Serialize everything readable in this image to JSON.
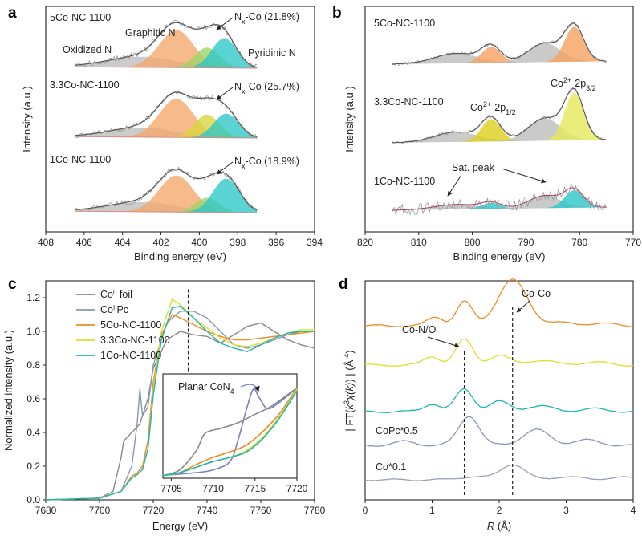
{
  "figure_colors": {
    "graphitic": "#f4a66a",
    "pyridinic": "#2cc6c6",
    "nxco": "#d8d63c",
    "nxco_light": "#9fd36a",
    "oxidized": "#bdbdbd",
    "co2p12": "#d9cf1a",
    "co2p32": "#f5a060",
    "envelope": "#555555",
    "raw": "#9a9a9a",
    "baseline": "#d98b80",
    "co_foil": "#888888",
    "copc": "#8a96b8",
    "s5": "#f08a24",
    "s33": "#dede30",
    "s1": "#1ab8b0",
    "inset_copc": "#7a80c0",
    "dash": "#222222"
  },
  "chart_data": [
    {
      "panel": "a",
      "type": "line",
      "title": "",
      "xlabel": "Binding energy (eV)",
      "ylabel": "Intensity (a.u.)",
      "xlim": [
        408,
        394
      ],
      "xticks": [
        408,
        406,
        404,
        402,
        400,
        398,
        396,
        394
      ],
      "component_legend": [
        "Graphitic N",
        "Oxidized N",
        "Pyridinic N"
      ],
      "series": [
        {
          "name": "5Co-NC-1100",
          "annotation": "Nx-Co (21.8%)",
          "components": [
            {
              "name": "Oxidized N",
              "center": 403.0,
              "height": 0.22,
              "width": 1.8
            },
            {
              "name": "Graphitic N",
              "center": 401.2,
              "height": 0.78,
              "width": 0.9
            },
            {
              "name": "Nx-Co",
              "center": 399.6,
              "height": 0.42,
              "width": 0.65
            },
            {
              "name": "Pyridinic N",
              "center": 398.7,
              "height": 0.62,
              "width": 0.65
            }
          ]
        },
        {
          "name": "3.3Co-NC-1100",
          "annotation": "Nx-Co (25.7%)",
          "components": [
            {
              "name": "Oxidized N",
              "center": 403.0,
              "height": 0.2,
              "width": 1.7
            },
            {
              "name": "Graphitic N",
              "center": 401.2,
              "height": 0.8,
              "width": 0.9
            },
            {
              "name": "Nx-Co",
              "center": 399.6,
              "height": 0.48,
              "width": 0.65
            },
            {
              "name": "Pyridinic N",
              "center": 398.6,
              "height": 0.5,
              "width": 0.65
            }
          ]
        },
        {
          "name": "1Co-NC-1100",
          "annotation": "Nx-Co (18.9%)",
          "components": [
            {
              "name": "Oxidized N",
              "center": 403.0,
              "height": 0.2,
              "width": 1.8
            },
            {
              "name": "Graphitic N",
              "center": 401.2,
              "height": 0.76,
              "width": 0.9
            },
            {
              "name": "Nx-Co",
              "center": 399.6,
              "height": 0.3,
              "width": 0.6
            },
            {
              "name": "Pyridinic N",
              "center": 398.6,
              "height": 0.7,
              "width": 0.7
            }
          ]
        }
      ]
    },
    {
      "panel": "b",
      "type": "line",
      "title": "",
      "xlabel": "Binding energy (eV)",
      "ylabel": "Intensity (a.u.)",
      "xlim": [
        820,
        770
      ],
      "xticks": [
        820,
        810,
        800,
        790,
        780,
        770
      ],
      "annotations": [
        "Co2+ 2p1/2",
        "Co2+ 2p3/2",
        "Sat. peak"
      ],
      "series": [
        {
          "name": "5Co-NC-1100",
          "components": [
            {
              "name": "sat",
              "center": 803,
              "height": 0.2,
              "width": 4
            },
            {
              "name": "Co2+ 2p1/2",
              "center": 796.5,
              "height": 0.32,
              "width": 1.8
            },
            {
              "name": "sat",
              "center": 786.5,
              "height": 0.38,
              "width": 3
            },
            {
              "name": "Co2+ 2p3/2",
              "center": 781,
              "height": 0.7,
              "width": 1.8
            }
          ]
        },
        {
          "name": "3.3Co-NC-1100",
          "components": [
            {
              "name": "sat",
              "center": 803,
              "height": 0.2,
              "width": 4
            },
            {
              "name": "Co2+ 2p1/2",
              "center": 796.5,
              "height": 0.45,
              "width": 1.8
            },
            {
              "name": "sat",
              "center": 786.5,
              "height": 0.45,
              "width": 3
            },
            {
              "name": "Co2+ 2p3/2",
              "center": 781,
              "height": 0.95,
              "width": 1.8
            }
          ]
        },
        {
          "name": "1Co-NC-1100",
          "components": [
            {
              "name": "sat",
              "center": 803,
              "height": 0.1,
              "width": 4
            },
            {
              "name": "Co2+ 2p1/2",
              "center": 796.5,
              "height": 0.12,
              "width": 1.8
            },
            {
              "name": "sat",
              "center": 786.5,
              "height": 0.25,
              "width": 3
            },
            {
              "name": "Co2+ 2p3/2",
              "center": 781,
              "height": 0.35,
              "width": 1.8
            }
          ]
        }
      ]
    },
    {
      "panel": "c",
      "type": "line",
      "title": "",
      "xlabel": "Energy (eV)",
      "ylabel": "Normalized intensity (a.u.)",
      "xlim": [
        7680,
        7780
      ],
      "ylim": [
        0,
        1.3
      ],
      "xticks": [
        7680,
        7700,
        7720,
        7740,
        7760,
        7780
      ],
      "yticks": [
        0.0,
        0.2,
        0.4,
        0.6,
        0.8,
        1.0,
        1.2
      ],
      "dashed_line_x": 7733,
      "legend": [
        "Co0 foil",
        "CoIIPc",
        "5Co-NC-1100",
        "3.3Co-NC-1100",
        "1Co-NC-1100"
      ],
      "series": [
        {
          "name": "Co0 foil",
          "x": [
            7680,
            7700,
            7705,
            7708,
            7709,
            7712,
            7715,
            7718,
            7720,
            7725,
            7730,
            7735,
            7740,
            7745,
            7750,
            7755,
            7760,
            7765,
            7770,
            7775,
            7780
          ],
          "y": [
            0.0,
            0.01,
            0.05,
            0.25,
            0.35,
            0.4,
            0.45,
            0.6,
            0.78,
            0.95,
            1.0,
            0.98,
            0.97,
            0.93,
            0.98,
            1.03,
            1.05,
            1.0,
            0.95,
            0.92,
            0.9
          ]
        },
        {
          "name": "CoIIPc",
          "x": [
            7680,
            7700,
            7708,
            7712,
            7714,
            7715,
            7716,
            7718,
            7720,
            7725,
            7730,
            7735,
            7740,
            7745,
            7750,
            7755,
            7760,
            7765,
            7770,
            7775,
            7780
          ],
          "y": [
            0.0,
            0.01,
            0.05,
            0.2,
            0.45,
            0.66,
            0.5,
            0.55,
            0.8,
            1.05,
            1.12,
            1.12,
            1.08,
            1.0,
            0.92,
            0.9,
            0.92,
            0.95,
            0.98,
            1.0,
            1.0
          ]
        },
        {
          "name": "5Co-NC-1100",
          "x": [
            7680,
            7700,
            7708,
            7712,
            7714,
            7716,
            7718,
            7720,
            7723,
            7727,
            7730,
            7735,
            7740,
            7745,
            7750,
            7755,
            7760,
            7765,
            7770,
            7775,
            7780
          ],
          "y": [
            0.0,
            0.01,
            0.05,
            0.14,
            0.16,
            0.2,
            0.35,
            0.7,
            0.98,
            1.1,
            1.08,
            1.04,
            1.0,
            0.97,
            0.95,
            0.95,
            0.96,
            0.97,
            0.98,
            0.99,
            1.0
          ]
        },
        {
          "name": "3.3Co-NC-1100",
          "x": [
            7680,
            7700,
            7708,
            7712,
            7714,
            7716,
            7718,
            7720,
            7723,
            7727,
            7730,
            7735,
            7740,
            7745,
            7750,
            7755,
            7760,
            7765,
            7770,
            7775,
            7780
          ],
          "y": [
            0.0,
            0.01,
            0.05,
            0.13,
            0.15,
            0.18,
            0.3,
            0.65,
            1.0,
            1.19,
            1.16,
            1.08,
            1.02,
            0.96,
            0.92,
            0.91,
            0.93,
            0.96,
            0.99,
            1.01,
            1.01
          ]
        },
        {
          "name": "1Co-NC-1100",
          "x": [
            7680,
            7700,
            7708,
            7712,
            7714,
            7716,
            7718,
            7720,
            7723,
            7727,
            7730,
            7735,
            7740,
            7745,
            7750,
            7755,
            7760,
            7765,
            7770,
            7775,
            7780
          ],
          "y": [
            0.0,
            0.01,
            0.05,
            0.13,
            0.15,
            0.18,
            0.3,
            0.62,
            0.95,
            1.14,
            1.15,
            1.08,
            1.0,
            0.93,
            0.9,
            0.88,
            0.92,
            0.96,
            0.99,
            1.0,
            1.0
          ]
        }
      ],
      "inset": {
        "xlim": [
          7704,
          7720
        ],
        "xticks": [
          7705,
          7710,
          7715,
          7720
        ],
        "ylim": [
          0.0,
          0.75
        ],
        "annotation": "Planar CoN4",
        "series": [
          {
            "name": "Co0 foil",
            "x": [
              7704,
              7706,
              7708,
              7709,
              7711,
              7713,
              7715,
              7717,
              7720
            ],
            "y": [
              0.02,
              0.06,
              0.2,
              0.32,
              0.36,
              0.4,
              0.46,
              0.52,
              0.65
            ]
          },
          {
            "name": "CoIIPc",
            "x": [
              7704,
              7706,
              7708,
              7710,
              7712,
              7713,
              7714,
              7714.8,
              7715.5,
              7716.5,
              7718,
              7720
            ],
            "y": [
              0.02,
              0.03,
              0.04,
              0.06,
              0.12,
              0.28,
              0.5,
              0.64,
              0.58,
              0.5,
              0.55,
              0.65
            ]
          },
          {
            "name": "5Co-NC-1100",
            "x": [
              7704,
              7706,
              7708,
              7710,
              7712,
              7714,
              7716,
              7718,
              7720
            ],
            "y": [
              0.02,
              0.04,
              0.1,
              0.15,
              0.19,
              0.24,
              0.34,
              0.47,
              0.65
            ]
          },
          {
            "name": "3.3Co-NC-1100",
            "x": [
              7704,
              7706,
              7708,
              7710,
              7712,
              7714,
              7716,
              7718,
              7720
            ],
            "y": [
              0.02,
              0.04,
              0.08,
              0.12,
              0.15,
              0.2,
              0.3,
              0.45,
              0.64
            ]
          },
          {
            "name": "1Co-NC-1100",
            "x": [
              7704,
              7706,
              7708,
              7710,
              7712,
              7714,
              7716,
              7718,
              7720
            ],
            "y": [
              0.02,
              0.04,
              0.08,
              0.12,
              0.15,
              0.19,
              0.29,
              0.44,
              0.63
            ]
          }
        ]
      }
    },
    {
      "panel": "d",
      "type": "line",
      "title": "",
      "xlabel": "R (Å)",
      "ylabel": "| FT(k3χ(k)) | (Å-4)",
      "xlim": [
        0,
        4
      ],
      "xticks": [
        0,
        1,
        2,
        3,
        4
      ],
      "dashed_lines_x": [
        1.48,
        2.2
      ],
      "annotations": [
        "Co-N/O",
        "Co-Co"
      ],
      "series": [
        {
          "name": "5Co-NC-1100",
          "color_key": "s5",
          "peaks": [
            [
              1.05,
              0.35,
              0.12
            ],
            [
              1.48,
              1.0,
              0.12
            ],
            [
              2.2,
              1.9,
              0.22
            ],
            [
              2.9,
              0.12,
              0.2
            ],
            [
              3.5,
              0.1,
              0.2
            ]
          ]
        },
        {
          "name": "3.3Co-NC-1100",
          "color_key": "s33",
          "peaks": [
            [
              1.0,
              0.35,
              0.12
            ],
            [
              1.48,
              1.05,
              0.13
            ],
            [
              2.0,
              0.4,
              0.15
            ],
            [
              2.6,
              0.2,
              0.2
            ],
            [
              3.4,
              0.12,
              0.2
            ]
          ]
        },
        {
          "name": "1Co-NC-1100",
          "color_key": "s1",
          "peaks": [
            [
              1.0,
              0.35,
              0.12
            ],
            [
              1.48,
              1.0,
              0.13
            ],
            [
              2.0,
              0.45,
              0.15
            ],
            [
              2.6,
              0.25,
              0.2
            ],
            [
              3.4,
              0.12,
              0.2
            ]
          ]
        },
        {
          "name": "CoPc*0.5",
          "peaks": [
            [
              0.6,
              0.15,
              0.15
            ],
            [
              1.55,
              1.15,
              0.15
            ],
            [
              2.55,
              0.6,
              0.2
            ],
            [
              3.3,
              0.2,
              0.2
            ]
          ]
        },
        {
          "name": "Co*0.1",
          "peaks": [
            [
              1.6,
              0.15,
              0.2
            ],
            [
              2.2,
              0.75,
              0.18
            ],
            [
              3.0,
              0.15,
              0.2
            ],
            [
              3.8,
              0.12,
              0.2
            ]
          ]
        }
      ]
    }
  ],
  "panels": {
    "a": {
      "letter": "a"
    },
    "b": {
      "letter": "b"
    },
    "c": {
      "letter": "c"
    },
    "d": {
      "letter": "d"
    }
  }
}
